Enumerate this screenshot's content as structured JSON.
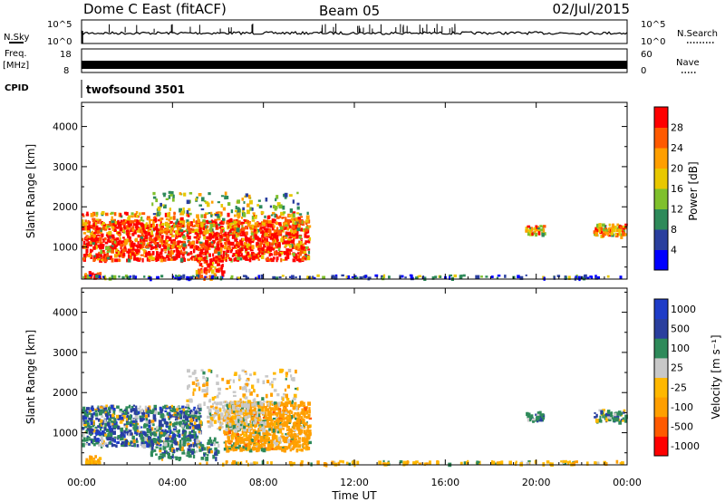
{
  "header": {
    "site": "Dome C East (fitACF)",
    "beam": "Beam 05",
    "date": "02/Jul/2015"
  },
  "aux": {
    "nsky_label": "N.Sky",
    "nsky_ticks": [
      "10^5",
      "10^0"
    ],
    "nsearch_label": "N.Search",
    "nsearch_ticks": [
      "10^5",
      "10^0"
    ],
    "freq_label_1": "Freq.",
    "freq_label_2": "[MHz]",
    "freq_ticks": [
      "18",
      "8"
    ],
    "nave_label": "Nave",
    "nave_ticks": [
      "60",
      "0"
    ],
    "cpid_label": "CPID",
    "cpid_value": "twofsound 3501"
  },
  "colors": {
    "power": [
      "#0000ff",
      "#2a3f9e",
      "#2e8a5a",
      "#7fc02c",
      "#e8c800",
      "#ff9f00",
      "#ff5a00",
      "#ff0000"
    ],
    "velocity": [
      "#ff0000",
      "#ff5a00",
      "#ff9f00",
      "#ffb800",
      "#c8c8c8",
      "#2e8a5a",
      "#2a3f9e",
      "#1e3cc8"
    ]
  },
  "chart_data": [
    {
      "type": "heatmap",
      "name": "power-panel",
      "ylabel": "Slant Range [km]",
      "xlabel": "",
      "ylim": [
        200,
        4600
      ],
      "xlim": [
        0,
        24
      ],
      "yticks": [
        "1000",
        "2000",
        "3000",
        "4000"
      ],
      "colorbar_label": "Power [dB]",
      "colorbar_ticks": [
        "4",
        "8",
        "12",
        "16",
        "20",
        "24",
        "28"
      ],
      "colorbar_range": [
        0,
        32
      ]
    },
    {
      "type": "heatmap",
      "name": "velocity-panel",
      "ylabel": "Slant Range [km]",
      "xlabel": "Time UT",
      "ylim": [
        200,
        4600
      ],
      "xlim": [
        0,
        24
      ],
      "xticks": [
        "00:00",
        "04:00",
        "08:00",
        "12:00",
        "16:00",
        "20:00",
        "00:00"
      ],
      "yticks": [
        "1000",
        "2000",
        "3000",
        "4000"
      ],
      "colorbar_label": "Velocity [m s⁻¹]",
      "colorbar_ticks": [
        "1000",
        "500",
        "100",
        "25",
        "-25",
        "-100",
        "-500",
        "-1000"
      ]
    }
  ]
}
